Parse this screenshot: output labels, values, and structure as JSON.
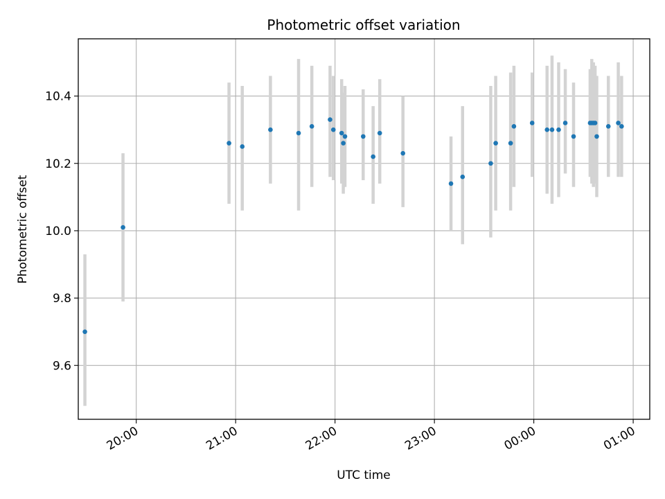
{
  "chart_data": {
    "type": "scatter",
    "title": "Photometric offset variation",
    "xlabel": "UTC time",
    "ylabel": "Photometric offset",
    "x_axis_kind": "time",
    "xlim": [
      "19:25",
      "01:10"
    ],
    "ylim": [
      9.44,
      10.57
    ],
    "x_ticks": [
      "20:00",
      "21:00",
      "22:00",
      "23:00",
      "00:00",
      "01:00"
    ],
    "y_ticks": [
      9.6,
      9.8,
      10.0,
      10.2,
      10.4
    ],
    "grid": true,
    "colors": {
      "points": "#1f77b4",
      "errorbars": "#d3d3d3",
      "grid": "#b0b0b0",
      "axes": "#000000"
    },
    "points": [
      {
        "x": "19:29",
        "y": 9.7,
        "err_low": 9.48,
        "err_high": 9.93
      },
      {
        "x": "19:52",
        "y": 10.01,
        "err_low": 9.79,
        "err_high": 10.23
      },
      {
        "x": "20:56",
        "y": 10.26,
        "err_low": 10.08,
        "err_high": 10.44
      },
      {
        "x": "21:04",
        "y": 10.25,
        "err_low": 10.06,
        "err_high": 10.43
      },
      {
        "x": "21:21",
        "y": 10.3,
        "err_low": 10.14,
        "err_high": 10.46
      },
      {
        "x": "21:38",
        "y": 10.29,
        "err_low": 10.06,
        "err_high": 10.51
      },
      {
        "x": "21:46",
        "y": 10.31,
        "err_low": 10.13,
        "err_high": 10.49
      },
      {
        "x": "21:57",
        "y": 10.33,
        "err_low": 10.16,
        "err_high": 10.49
      },
      {
        "x": "21:59",
        "y": 10.3,
        "err_low": 10.15,
        "err_high": 10.46
      },
      {
        "x": "22:04",
        "y": 10.29,
        "err_low": 10.14,
        "err_high": 10.45
      },
      {
        "x": "22:05",
        "y": 10.26,
        "err_low": 10.11,
        "err_high": 10.41
      },
      {
        "x": "22:06",
        "y": 10.28,
        "err_low": 10.13,
        "err_high": 10.43
      },
      {
        "x": "22:17",
        "y": 10.28,
        "err_low": 10.15,
        "err_high": 10.42
      },
      {
        "x": "22:23",
        "y": 10.22,
        "err_low": 10.08,
        "err_high": 10.37
      },
      {
        "x": "22:27",
        "y": 10.29,
        "err_low": 10.14,
        "err_high": 10.45
      },
      {
        "x": "22:41",
        "y": 10.23,
        "err_low": 10.07,
        "err_high": 10.4
      },
      {
        "x": "23:10",
        "y": 10.14,
        "err_low": 10.0,
        "err_high": 10.28
      },
      {
        "x": "23:17",
        "y": 10.16,
        "err_low": 9.96,
        "err_high": 10.37
      },
      {
        "x": "23:34",
        "y": 10.2,
        "err_low": 9.98,
        "err_high": 10.43
      },
      {
        "x": "23:37",
        "y": 10.26,
        "err_low": 10.06,
        "err_high": 10.46
      },
      {
        "x": "23:46",
        "y": 10.26,
        "err_low": 10.06,
        "err_high": 10.47
      },
      {
        "x": "23:48",
        "y": 10.31,
        "err_low": 10.13,
        "err_high": 10.49
      },
      {
        "x": "23:59",
        "y": 10.32,
        "err_low": 10.16,
        "err_high": 10.47
      },
      {
        "x": "00:08",
        "y": 10.3,
        "err_low": 10.11,
        "err_high": 10.49
      },
      {
        "x": "00:11",
        "y": 10.3,
        "err_low": 10.08,
        "err_high": 10.52
      },
      {
        "x": "00:15",
        "y": 10.3,
        "err_low": 10.1,
        "err_high": 10.5
      },
      {
        "x": "00:19",
        "y": 10.32,
        "err_low": 10.17,
        "err_high": 10.48
      },
      {
        "x": "00:24",
        "y": 10.28,
        "err_low": 10.13,
        "err_high": 10.44
      },
      {
        "x": "00:34",
        "y": 10.32,
        "err_low": 10.16,
        "err_high": 10.48
      },
      {
        "x": "00:35",
        "y": 10.32,
        "err_low": 10.14,
        "err_high": 10.51
      },
      {
        "x": "00:36",
        "y": 10.32,
        "err_low": 10.13,
        "err_high": 10.5
      },
      {
        "x": "00:37",
        "y": 10.32,
        "err_low": 10.14,
        "err_high": 10.49
      },
      {
        "x": "00:38",
        "y": 10.28,
        "err_low": 10.1,
        "err_high": 10.46
      },
      {
        "x": "00:45",
        "y": 10.31,
        "err_low": 10.16,
        "err_high": 10.46
      },
      {
        "x": "00:51",
        "y": 10.32,
        "err_low": 10.16,
        "err_high": 10.5
      },
      {
        "x": "00:53",
        "y": 10.31,
        "err_low": 10.16,
        "err_high": 10.46
      }
    ]
  }
}
